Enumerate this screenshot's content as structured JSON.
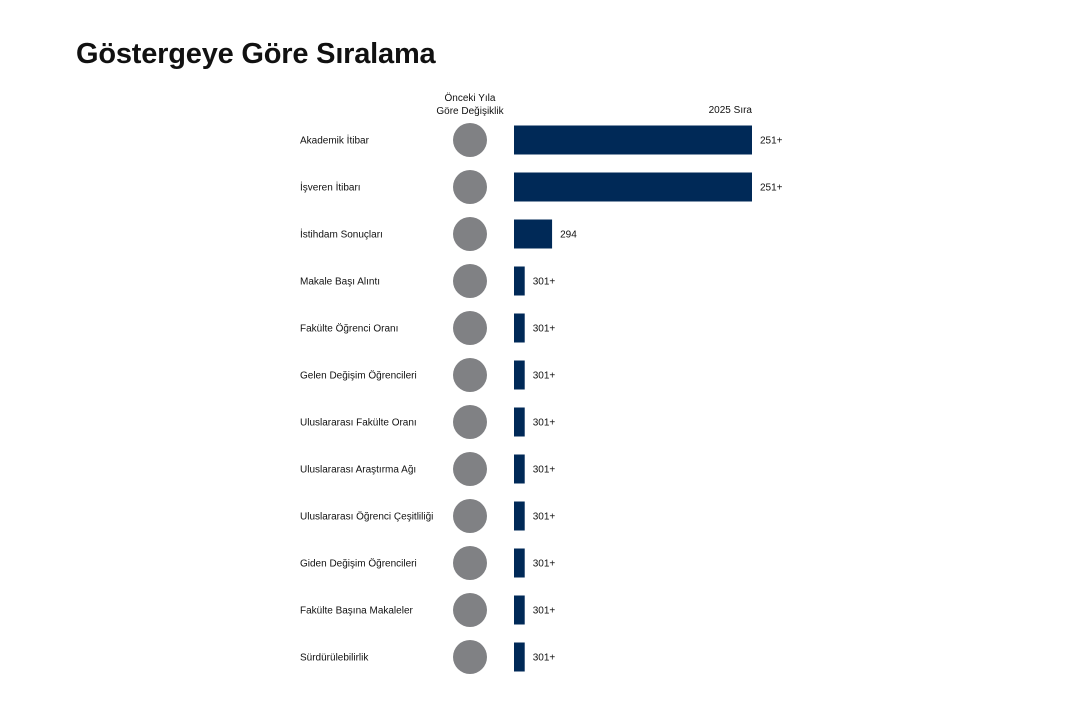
{
  "page": {
    "title": "Göstergeye Göre Sıralama",
    "change_header_line1": "Önceki Yıla",
    "change_header_line2": "Göre Değişiklik",
    "rank_header": "2025 Sıra"
  },
  "colors": {
    "bar": "#002957",
    "change_circle": "#808184",
    "text": "#111111"
  },
  "chart_data": {
    "type": "bar",
    "orientation": "horizontal",
    "categories": [
      "Akademik İtibar",
      "İşveren İtibarı",
      "İstihdam Sonuçları",
      "Makale Başı Alıntı",
      "Fakülte Öğrenci Oranı",
      "Gelen Değişim Öğrencileri",
      "Uluslararası Fakülte Oranı",
      "Uluslararası Araştırma Ağı",
      "Uluslararası Öğrenci Çeşitliliği",
      "Giden Değişim Öğrencileri",
      "Fakülte Başına Makaleler",
      "Sürdürülebilirlik"
    ],
    "series": [
      {
        "name": "2025 Sıra",
        "labels": [
          "251+",
          "251+",
          "294",
          "301+",
          "301+",
          "301+",
          "301+",
          "301+",
          "301+",
          "301+",
          "301+",
          "301+"
        ],
        "bar_fill": [
          1.0,
          1.0,
          0.16,
          0.045,
          0.045,
          0.045,
          0.045,
          0.045,
          0.045,
          0.045,
          0.045,
          0.045
        ]
      }
    ],
    "change_from_previous_year": [
      "",
      "",
      "",
      "",
      "",
      "",
      "",
      "",
      "",
      "",
      "",
      ""
    ]
  }
}
